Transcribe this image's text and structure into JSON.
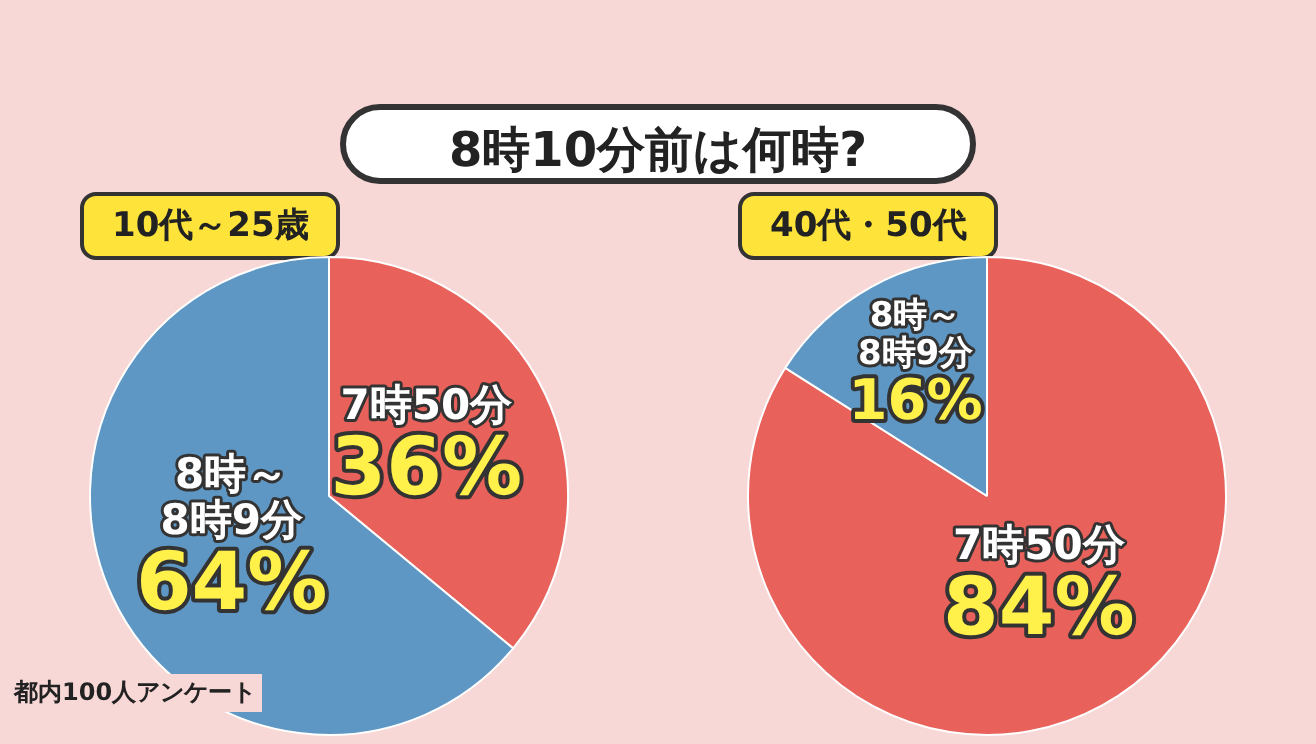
{
  "chart_data": [
    {
      "type": "pie",
      "title": "8時10分前は何時?",
      "subtitle": "10代～25歳",
      "categories": [
        "7時50分",
        "8時～\n8時9分"
      ],
      "values": [
        36,
        64
      ],
      "value_labels": [
        "36%",
        "64%"
      ],
      "colors": [
        "#e8615a",
        "#5f97c4"
      ],
      "annotations": [
        "都内100人アンケート"
      ]
    },
    {
      "type": "pie",
      "subtitle": "40代・50代",
      "categories": [
        "7時50分",
        "8時～\n8時9分"
      ],
      "values": [
        84,
        16
      ],
      "value_labels": [
        "84%",
        "16%"
      ],
      "colors": [
        "#e8615a",
        "#5f97c4"
      ]
    }
  ]
}
